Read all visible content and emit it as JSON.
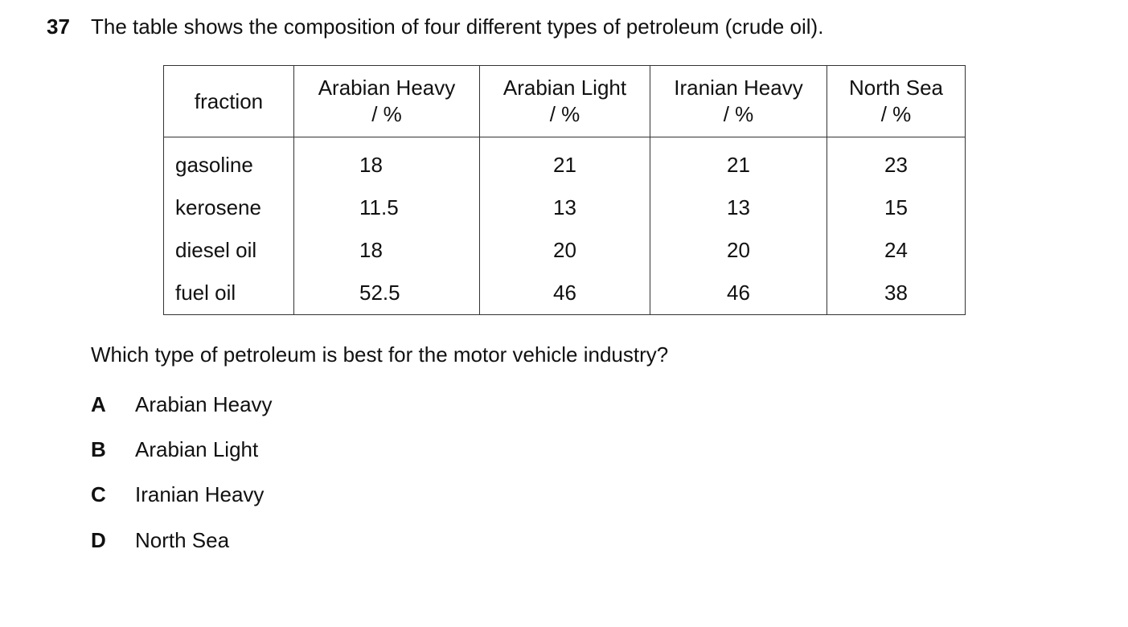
{
  "question": {
    "number": "37",
    "stem": "The table shows the composition of four different types of petroleum (crude oil).",
    "prompt": "Which type of petroleum is best for the motor vehicle industry?"
  },
  "table": {
    "corner": "fraction",
    "columns": [
      {
        "name": "Arabian Heavy",
        "unit": "/ %"
      },
      {
        "name": "Arabian Light",
        "unit": "/ %"
      },
      {
        "name": "Iranian Heavy",
        "unit": "/ %"
      },
      {
        "name": "North Sea",
        "unit": "/ %"
      }
    ],
    "rows": [
      [
        "gasoline",
        18,
        21,
        21,
        23
      ],
      [
        "kerosene",
        11.5,
        13,
        13,
        15
      ],
      [
        "diesel oil",
        18,
        20,
        20,
        24
      ],
      [
        "fuel oil",
        52.5,
        46,
        46,
        38
      ]
    ]
  },
  "options": [
    {
      "letter": "A",
      "text": "Arabian Heavy"
    },
    {
      "letter": "B",
      "text": "Arabian Light"
    },
    {
      "letter": "C",
      "text": "Iranian Heavy"
    },
    {
      "letter": "D",
      "text": "North Sea"
    }
  ]
}
